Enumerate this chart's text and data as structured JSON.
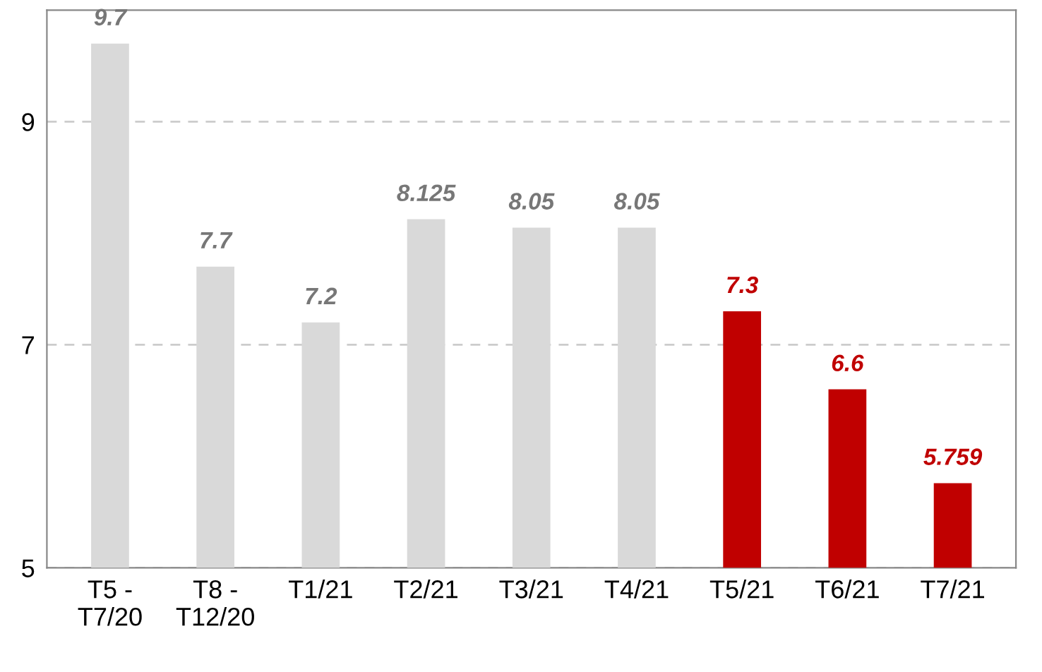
{
  "chart_data": {
    "type": "bar",
    "categories": [
      "T5 -\nT7/20",
      "T8 -\nT12/20",
      "T1/21",
      "T2/21",
      "T3/21",
      "T4/21",
      "T5/21",
      "T6/21",
      "T7/21"
    ],
    "values": [
      9.7,
      7.7,
      7.2,
      8.125,
      8.05,
      8.05,
      7.3,
      6.6,
      5.759
    ],
    "colors": [
      "#d9d9d9",
      "#d9d9d9",
      "#d9d9d9",
      "#d9d9d9",
      "#d9d9d9",
      "#d9d9d9",
      "#c00000",
      "#c00000",
      "#c00000"
    ],
    "ylim": [
      5,
      10
    ],
    "yticks": [
      5,
      7,
      9
    ],
    "grid": "y",
    "data_labels": true,
    "legend": false
  }
}
